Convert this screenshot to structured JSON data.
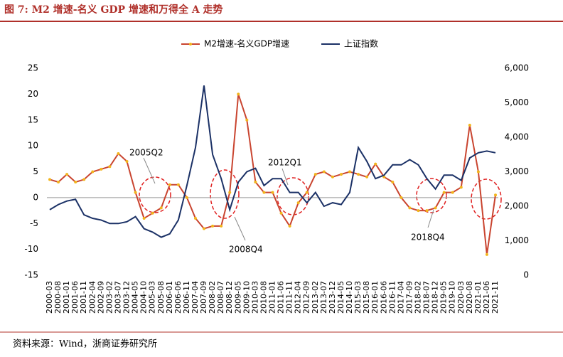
{
  "chart_data": {
    "type": "line",
    "title": "图 7: M2 增速-名义 GDP 增速和万得全 A 走势",
    "source": "资料来源：Wind，浙商证券研究所",
    "annotations": [
      "2005Q2",
      "2008Q4",
      "2012Q1",
      "2018Q4"
    ],
    "categories": [
      "2000-03",
      "2000-08",
      "2001-01",
      "2001-06",
      "2001-11",
      "2002-04",
      "2002-09",
      "2003-02",
      "2003-07",
      "2003-12",
      "2004-05",
      "2004-10",
      "2005-03",
      "2005-08",
      "2006-01",
      "2006-06",
      "2006-11",
      "2007-04",
      "2007-09",
      "2008-02",
      "2008-07",
      "2008-12",
      "2009-05",
      "2009-10",
      "2010-03",
      "2010-08",
      "2011-01",
      "2011-06",
      "2011-11",
      "2012-04",
      "2012-09",
      "2013-02",
      "2013-07",
      "2013-12",
      "2014-05",
      "2014-10",
      "2015-03",
      "2015-08",
      "2016-01",
      "2016-06",
      "2016-11",
      "2017-04",
      "2017-09",
      "2018-02",
      "2018-07",
      "2018-12",
      "2019-05",
      "2019-10",
      "2020-03",
      "2020-08",
      "2021-01",
      "2021-06",
      "2021-11"
    ],
    "series": [
      {
        "name": "M2增速-名义GDP增速",
        "color": "#c9442f",
        "marker_color": "#f2b51c",
        "axis": "y",
        "values": [
          3.5,
          3,
          4.5,
          3,
          3.5,
          5,
          5.5,
          6,
          8.5,
          7,
          1,
          -4,
          -3,
          -2,
          2.5,
          2.5,
          0,
          -4,
          -6,
          -5.5,
          -5.5,
          1,
          20,
          15,
          3,
          1,
          1,
          -3,
          -5.5,
          -1,
          1,
          4.5,
          5,
          4,
          4.5,
          5,
          4.5,
          4,
          6.5,
          4,
          3,
          0,
          -2,
          -2.5,
          -2.5,
          -2,
          1,
          1,
          2,
          14,
          5,
          -11,
          0.5
        ]
      },
      {
        "name": "上证指数",
        "color": "#1b3166",
        "axis": "y2",
        "values": [
          1900,
          2050,
          2150,
          2200,
          1750,
          1650,
          1600,
          1500,
          1500,
          1550,
          1700,
          1350,
          1250,
          1100,
          1200,
          1600,
          2600,
          3700,
          5500,
          3500,
          2800,
          1900,
          2700,
          3000,
          3100,
          2600,
          2800,
          2800,
          2400,
          2400,
          2100,
          2400,
          2000,
          2100,
          2050,
          2400,
          3700,
          3300,
          2800,
          2900,
          3200,
          3200,
          3350,
          3200,
          2800,
          2500,
          2900,
          2900,
          2750,
          3400,
          3550,
          3600,
          3550
        ]
      }
    ],
    "ylim": [
      -15,
      25
    ],
    "yticks": [
      -15,
      -10,
      -5,
      0,
      5,
      10,
      15,
      20,
      25
    ],
    "y2lim": [
      0,
      6000
    ],
    "y2ticks": [
      0,
      {
        "value": 1000,
        "label": "1,000"
      },
      {
        "value": 2000,
        "label": "2,000"
      },
      {
        "value": 3000,
        "label": "3,000"
      },
      {
        "value": 4000,
        "label": "4,000"
      },
      {
        "value": 5000,
        "label": "5,000"
      },
      {
        "value": 6000,
        "label": "6,000"
      }
    ],
    "legend": "top",
    "grid": false
  }
}
